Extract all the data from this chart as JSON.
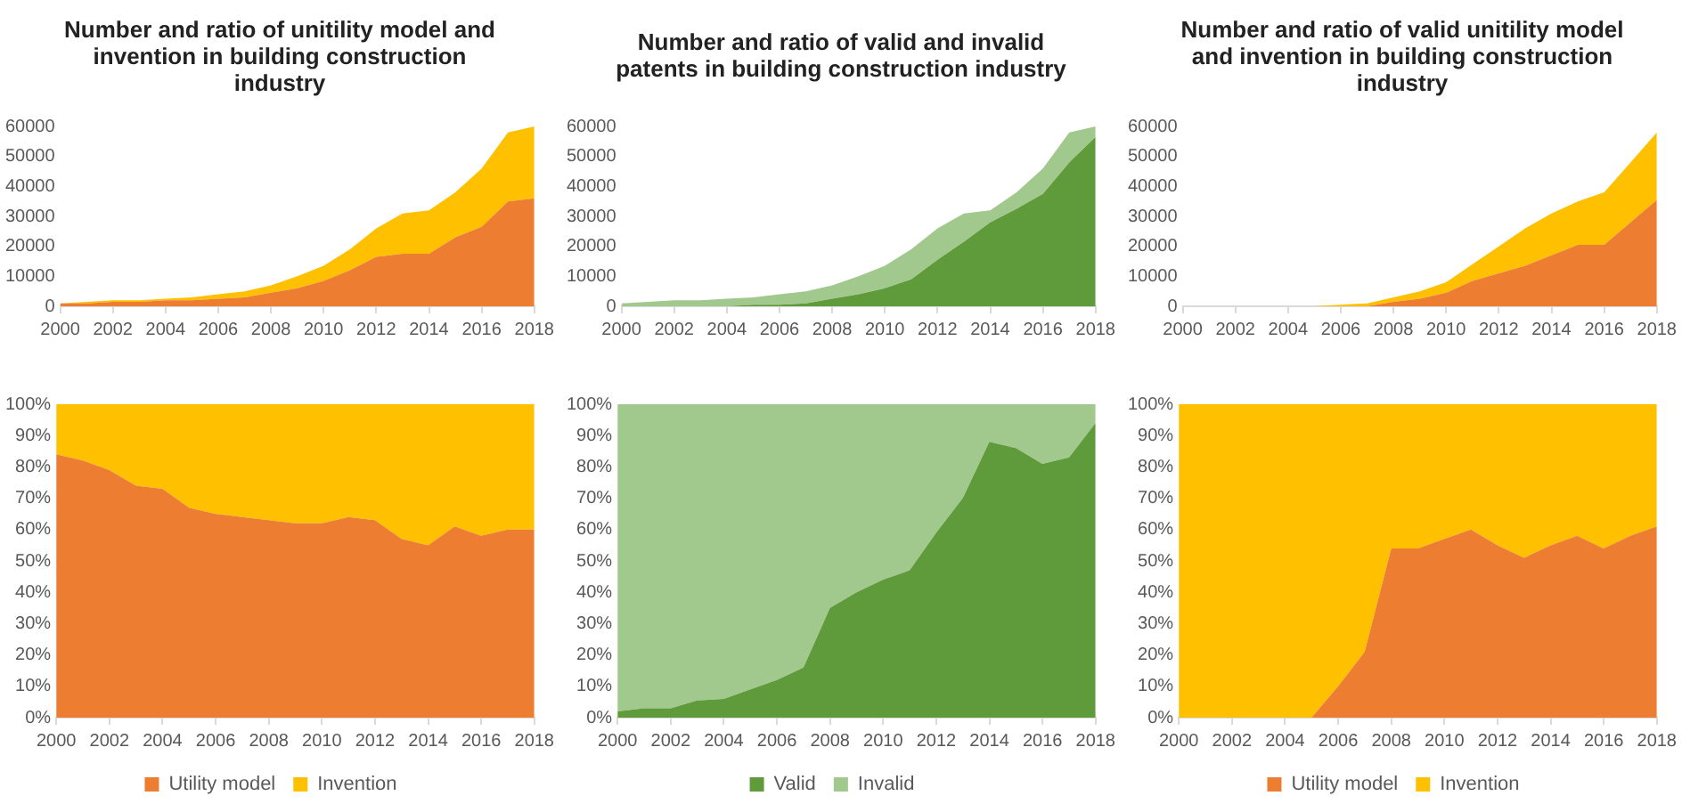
{
  "chart_data": [
    {
      "type": "area",
      "title": "Number and ratio of unitility model and invention in building construction industry",
      "stacked": true,
      "x": [
        2000,
        2001,
        2002,
        2003,
        2004,
        2005,
        2006,
        2007,
        2008,
        2009,
        2010,
        2011,
        2012,
        2013,
        2014,
        2015,
        2016,
        2017,
        2018
      ],
      "xlim": [
        2000,
        2018
      ],
      "xticks": [
        2000,
        2002,
        2004,
        2006,
        2008,
        2010,
        2012,
        2014,
        2016,
        2018
      ],
      "ylim": [
        0,
        60000
      ],
      "yticks": [
        0,
        10000,
        20000,
        30000,
        40000,
        50000,
        60000
      ],
      "series": [
        {
          "color": "#ed7d31",
          "values": [
            1000,
            1000,
            1500,
            1500,
            2000,
            2000,
            2500,
            3000,
            4500,
            6000,
            8500,
            12000,
            16500,
            17500,
            17500,
            23000,
            26500,
            35000,
            36000
          ]
        },
        {
          "color": "#ffc000",
          "values": [
            0,
            500,
            500,
            500,
            500,
            1000,
            1500,
            2000,
            2500,
            4000,
            5000,
            7000,
            9500,
            13500,
            14500,
            15000,
            19500,
            23000,
            24000
          ]
        }
      ]
    },
    {
      "type": "area",
      "stacked": true,
      "x": [
        2000,
        2001,
        2002,
        2003,
        2004,
        2005,
        2006,
        2007,
        2008,
        2009,
        2010,
        2011,
        2012,
        2013,
        2014,
        2015,
        2016,
        2017,
        2018
      ],
      "xlim": [
        2000,
        2018
      ],
      "xticks": [
        2000,
        2002,
        2004,
        2006,
        2008,
        2010,
        2012,
        2014,
        2016,
        2018
      ],
      "ylim": [
        0,
        100
      ],
      "yticks": [
        {
          "value": 0,
          "label": "0%"
        },
        {
          "value": 10,
          "label": "10%"
        },
        {
          "value": 20,
          "label": "20%"
        },
        {
          "value": 30,
          "label": "30%"
        },
        {
          "value": 40,
          "label": "40%"
        },
        {
          "value": 50,
          "label": "50%"
        },
        {
          "value": 60,
          "label": "60%"
        },
        {
          "value": 70,
          "label": "70%"
        },
        {
          "value": 80,
          "label": "80%"
        },
        {
          "value": 90,
          "label": "90%"
        },
        {
          "value": 100,
          "label": "100%"
        }
      ],
      "legend": "bottom",
      "series": [
        {
          "name": "Utility model",
          "color": "#ed7d31",
          "values": [
            84,
            82,
            79,
            74,
            73,
            67,
            65,
            64,
            63,
            62,
            62,
            64,
            63,
            57,
            55,
            61,
            58,
            60,
            60
          ]
        },
        {
          "name": "Invention",
          "color": "#ffc000",
          "values": [
            16,
            18,
            21,
            26,
            27,
            33,
            35,
            36,
            37,
            38,
            38,
            36,
            37,
            43,
            45,
            39,
            42,
            40,
            40
          ]
        }
      ]
    },
    {
      "type": "area",
      "title": "Number and ratio of valid and invalid patents in building construction industry",
      "stacked": true,
      "x": [
        2000,
        2001,
        2002,
        2003,
        2004,
        2005,
        2006,
        2007,
        2008,
        2009,
        2010,
        2011,
        2012,
        2013,
        2014,
        2015,
        2016,
        2017,
        2018
      ],
      "xlim": [
        2000,
        2018
      ],
      "xticks": [
        2000,
        2002,
        2004,
        2006,
        2008,
        2010,
        2012,
        2014,
        2016,
        2018
      ],
      "ylim": [
        0,
        60000
      ],
      "yticks": [
        0,
        10000,
        20000,
        30000,
        40000,
        50000,
        60000
      ],
      "series": [
        {
          "color": "#5f9b3b",
          "values": [
            0,
            0,
            0,
            0,
            0,
            500,
            500,
            1000,
            2500,
            4000,
            6000,
            9000,
            15500,
            21500,
            28000,
            32500,
            37500,
            48000,
            56500
          ]
        },
        {
          "color": "#a2c98d",
          "values": [
            1000,
            1500,
            2000,
            2000,
            2500,
            2500,
            3500,
            4000,
            4500,
            6000,
            7500,
            10000,
            10500,
            9500,
            4000,
            5500,
            8500,
            10000,
            3500
          ]
        }
      ]
    },
    {
      "type": "area",
      "stacked": true,
      "x": [
        2000,
        2001,
        2002,
        2003,
        2004,
        2005,
        2006,
        2007,
        2008,
        2009,
        2010,
        2011,
        2012,
        2013,
        2014,
        2015,
        2016,
        2017,
        2018
      ],
      "xlim": [
        2000,
        2018
      ],
      "xticks": [
        2000,
        2002,
        2004,
        2006,
        2008,
        2010,
        2012,
        2014,
        2016,
        2018
      ],
      "ylim": [
        0,
        100
      ],
      "yticks": [
        {
          "value": 0,
          "label": "0%"
        },
        {
          "value": 10,
          "label": "10%"
        },
        {
          "value": 20,
          "label": "20%"
        },
        {
          "value": 30,
          "label": "30%"
        },
        {
          "value": 40,
          "label": "40%"
        },
        {
          "value": 50,
          "label": "50%"
        },
        {
          "value": 60,
          "label": "60%"
        },
        {
          "value": 70,
          "label": "70%"
        },
        {
          "value": 80,
          "label": "80%"
        },
        {
          "value": 90,
          "label": "90%"
        },
        {
          "value": 100,
          "label": "100%"
        }
      ],
      "legend": "bottom",
      "series": [
        {
          "name": "Valid",
          "color": "#5f9b3b",
          "values": [
            2,
            3,
            3,
            5.5,
            6,
            9,
            12,
            16,
            35,
            40,
            44,
            47,
            59,
            70,
            88,
            86,
            81,
            83,
            94
          ]
        },
        {
          "name": "Invalid",
          "color": "#a2c98d",
          "values": [
            98,
            97,
            97,
            94.5,
            94,
            91,
            88,
            84,
            65,
            60,
            56,
            53,
            41,
            30,
            12,
            14,
            19,
            17,
            6
          ]
        }
      ]
    },
    {
      "type": "area",
      "title": "Number and ratio of valid unitility model and invention in building construction industry",
      "stacked": true,
      "x": [
        2000,
        2001,
        2002,
        2003,
        2004,
        2005,
        2006,
        2007,
        2008,
        2009,
        2010,
        2011,
        2012,
        2013,
        2014,
        2015,
        2016,
        2017,
        2018
      ],
      "xlim": [
        2000,
        2018
      ],
      "xticks": [
        2000,
        2002,
        2004,
        2006,
        2008,
        2010,
        2012,
        2014,
        2016,
        2018
      ],
      "ylim": [
        0,
        60000
      ],
      "yticks": [
        0,
        10000,
        20000,
        30000,
        40000,
        50000,
        60000
      ],
      "series": [
        {
          "color": "#ed7d31",
          "values": [
            0,
            0,
            0,
            0,
            0,
            0,
            0,
            0,
            1500,
            2500,
            4500,
            8500,
            11000,
            13500,
            17000,
            20500,
            20500,
            28000,
            35500
          ]
        },
        {
          "color": "#ffc000",
          "values": [
            0,
            0,
            0,
            0,
            0,
            0,
            500,
            1000,
            1500,
            2500,
            3500,
            5500,
            9000,
            12500,
            14000,
            14500,
            17500,
            20000,
            22500
          ]
        }
      ]
    },
    {
      "type": "area",
      "stacked": true,
      "x": [
        2000,
        2001,
        2002,
        2003,
        2004,
        2005,
        2006,
        2007,
        2008,
        2009,
        2010,
        2011,
        2012,
        2013,
        2014,
        2015,
        2016,
        2017,
        2018
      ],
      "xlim": [
        2000,
        2018
      ],
      "xticks": [
        2000,
        2002,
        2004,
        2006,
        2008,
        2010,
        2012,
        2014,
        2016,
        2018
      ],
      "ylim": [
        0,
        100
      ],
      "yticks": [
        {
          "value": 0,
          "label": "0%"
        },
        {
          "value": 10,
          "label": "10%"
        },
        {
          "value": 20,
          "label": "20%"
        },
        {
          "value": 30,
          "label": "30%"
        },
        {
          "value": 40,
          "label": "40%"
        },
        {
          "value": 50,
          "label": "50%"
        },
        {
          "value": 60,
          "label": "60%"
        },
        {
          "value": 70,
          "label": "70%"
        },
        {
          "value": 80,
          "label": "80%"
        },
        {
          "value": 90,
          "label": "90%"
        },
        {
          "value": 100,
          "label": "100%"
        }
      ],
      "legend": "bottom",
      "series": [
        {
          "name": "Utility model",
          "color": "#ed7d31",
          "values": [
            0,
            0,
            0,
            0,
            0,
            0,
            10,
            21,
            54,
            54,
            57,
            60,
            55,
            51,
            55,
            58,
            54,
            58,
            61
          ]
        },
        {
          "name": "Invention",
          "color": "#ffc000",
          "values": [
            100,
            100,
            100,
            100,
            100,
            100,
            90,
            79,
            46,
            46,
            43,
            40,
            45,
            49,
            45,
            42,
            46,
            42,
            39
          ]
        }
      ]
    }
  ]
}
